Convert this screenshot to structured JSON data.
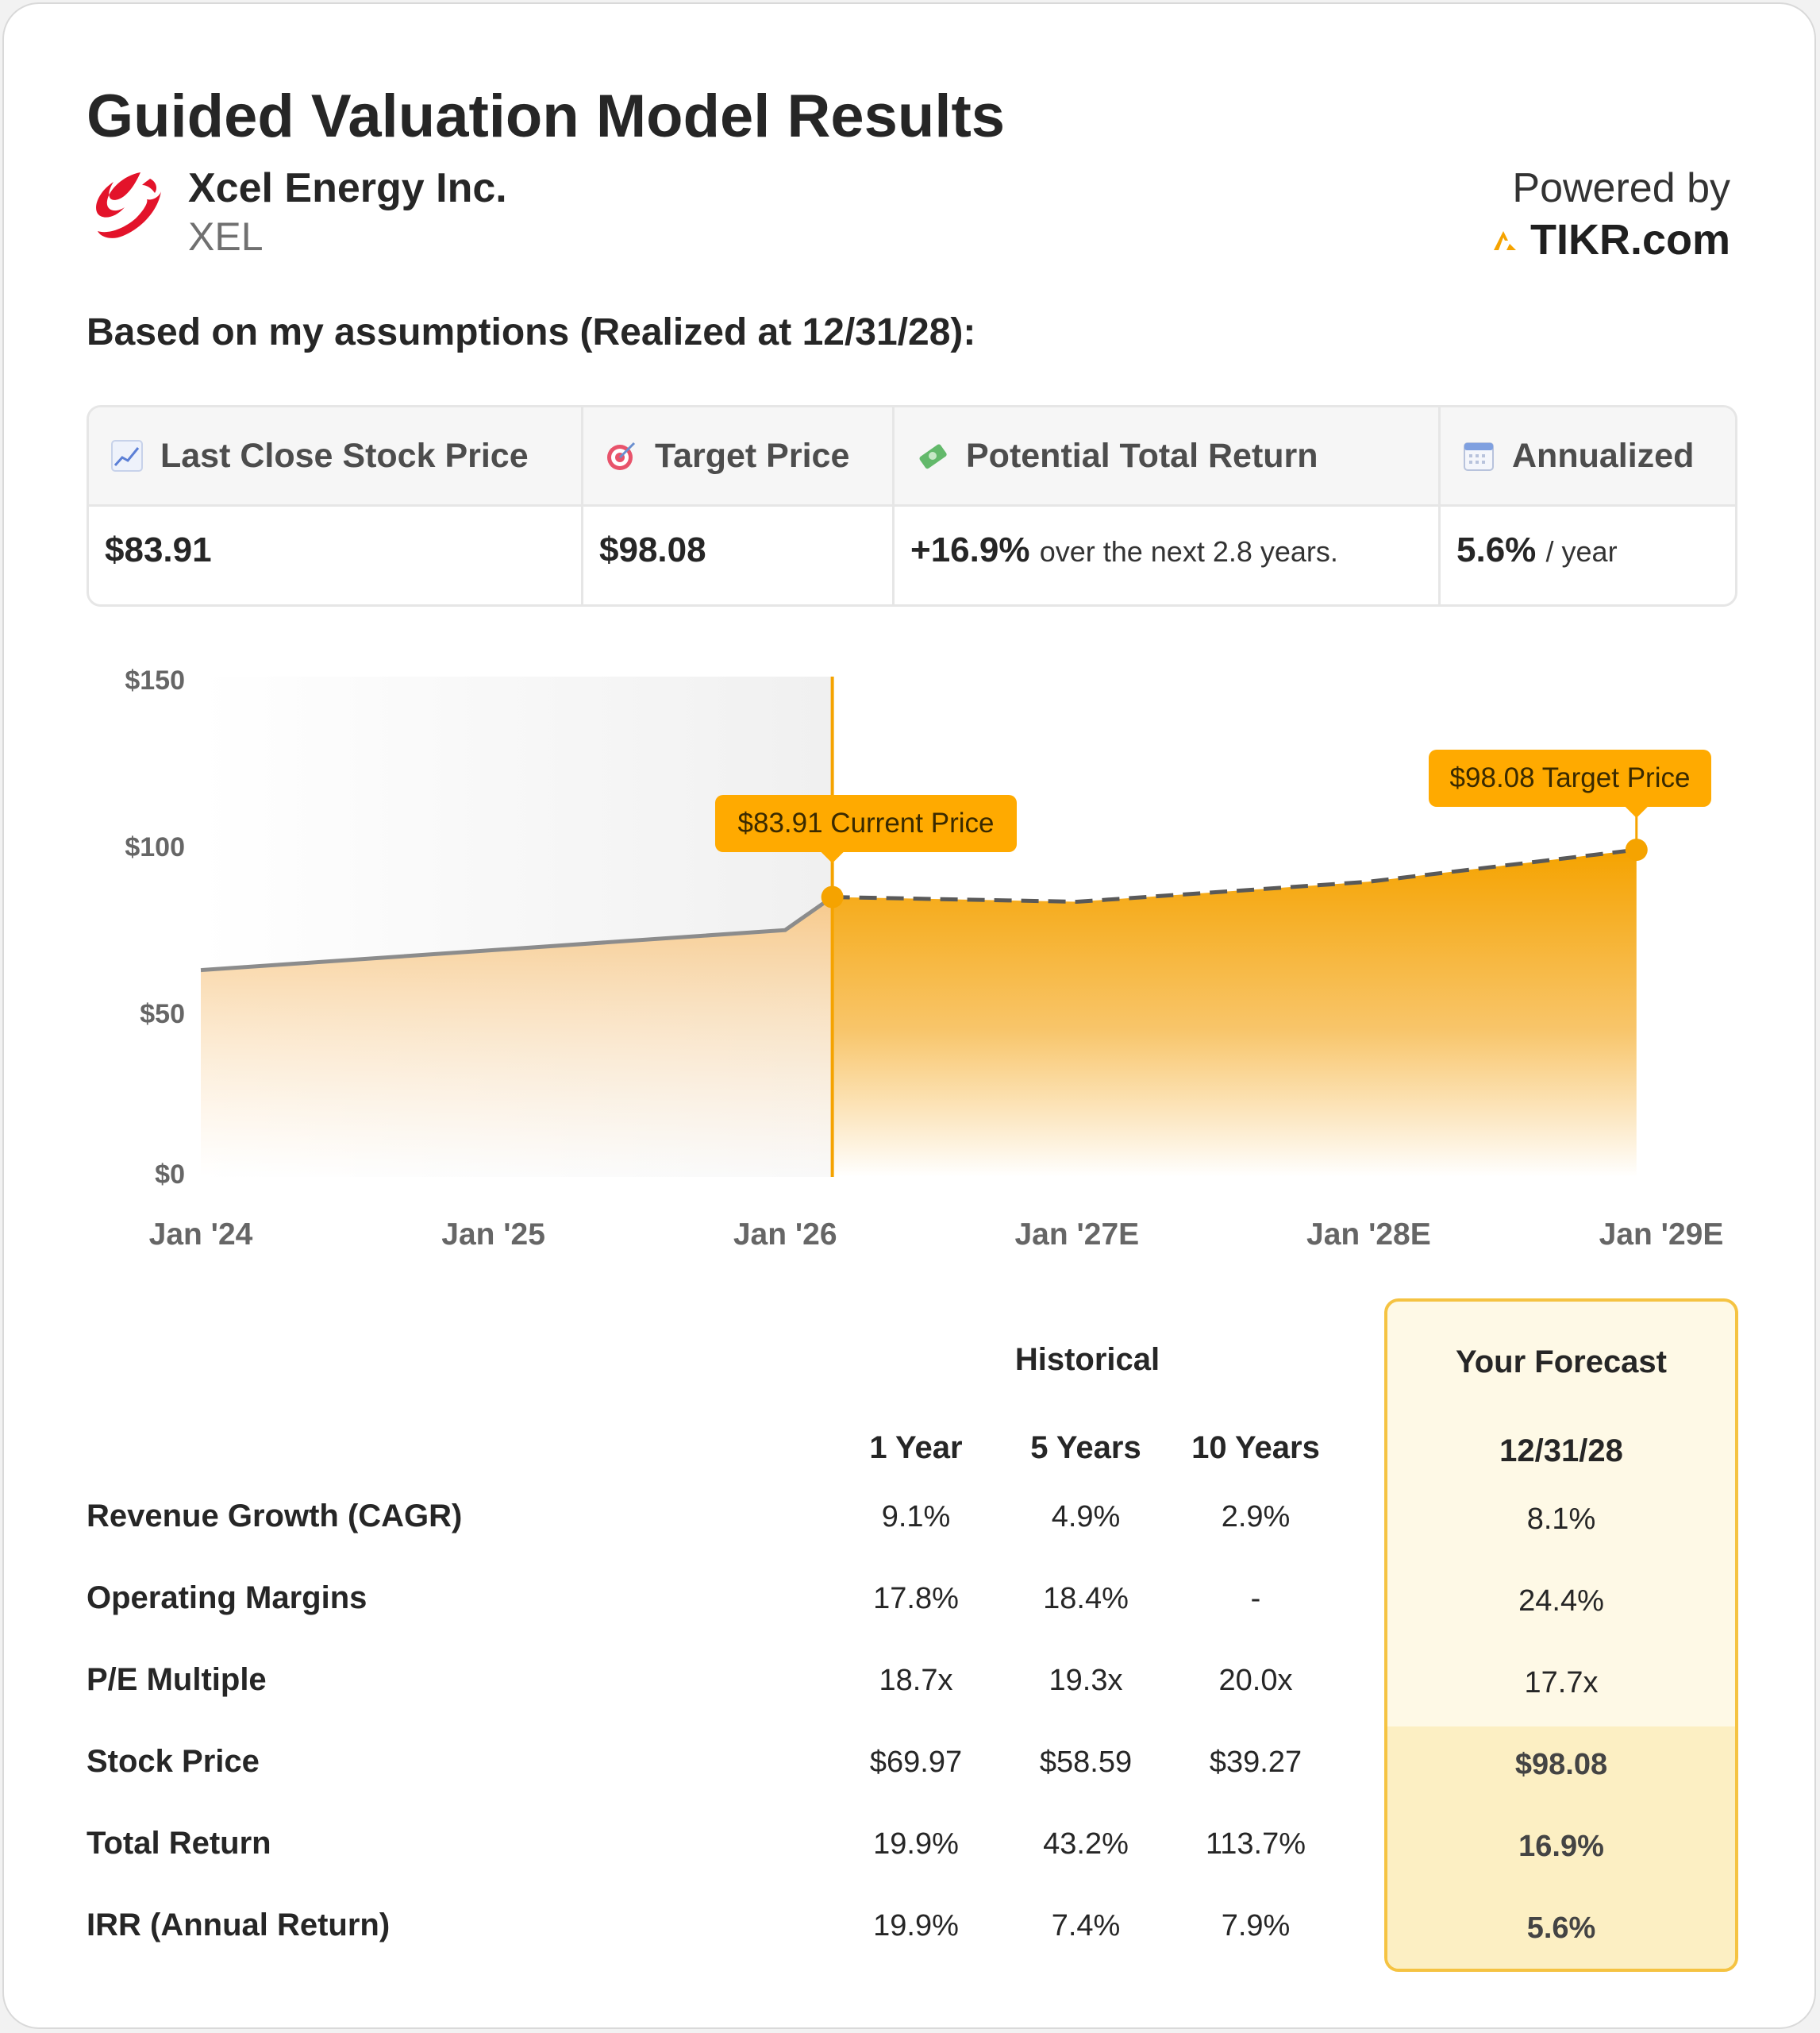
{
  "title": "Guided Valuation Model Results",
  "company": {
    "name": "Xcel Energy Inc.",
    "ticker": "XEL",
    "logo_icon": "xcel-logo"
  },
  "powered_by": {
    "label": "Powered by",
    "brand": "TIKR.com"
  },
  "assumptions_heading": "Based on my assumptions (Realized at 12/31/28):",
  "summary": {
    "columns": [
      {
        "icon": "chart-increasing-icon",
        "header": "Last Close Stock Price",
        "value": "$83.91",
        "suffix": ""
      },
      {
        "icon": "target-icon",
        "header": "Target Price",
        "value": "$98.08",
        "suffix": ""
      },
      {
        "icon": "money-icon",
        "header": "Potential Total Return",
        "value": "+16.9%",
        "suffix": "over the next 2.8 years."
      },
      {
        "icon": "calendar-icon",
        "header": "Annualized",
        "value": "5.6%",
        "suffix": "/ year"
      }
    ]
  },
  "chart_data": {
    "type": "area",
    "y_ticks": [
      "$150",
      "$100",
      "$50",
      "$0"
    ],
    "ylim": [
      0,
      150
    ],
    "x_ticks": [
      "Jan '24",
      "Jan '25",
      "Jan '26",
      "Jan '27E",
      "Jan '28E",
      "Jan '29E"
    ],
    "historical": [
      {
        "x": "2024-01",
        "y": 62
      },
      {
        "x": "2026-01",
        "y": 74
      },
      {
        "x": "2026-03",
        "y": 83.91
      }
    ],
    "forecast": [
      {
        "x": "2026-03",
        "y": 83.91
      },
      {
        "x": "2027-01",
        "y": 82.5
      },
      {
        "x": "2028-01",
        "y": 88.5
      },
      {
        "x": "2028-12",
        "y": 98.08
      }
    ],
    "annotations": {
      "current": "$83.91 Current Price",
      "target": "$98.08 Target Price"
    },
    "colors": {
      "accent": "#F7A600",
      "historical_line": "#8c8c8c",
      "label_bg": "#FFAA00"
    }
  },
  "table": {
    "historical_header": "Historical",
    "forecast_header": "Your Forecast",
    "columns": [
      "1 Year",
      "5 Years",
      "10 Years"
    ],
    "forecast_date": "12/31/28",
    "rows": [
      {
        "label": "Revenue Growth (CAGR)",
        "values": [
          "9.1%",
          "4.9%",
          "2.9%"
        ],
        "forecast": "8.1%"
      },
      {
        "label": "Operating Margins",
        "values": [
          "17.8%",
          "18.4%",
          "-"
        ],
        "forecast": "24.4%"
      },
      {
        "label": "P/E Multiple",
        "values": [
          "18.7x",
          "19.3x",
          "20.0x"
        ],
        "forecast": "17.7x"
      },
      {
        "label": "Stock Price",
        "values": [
          "$69.97",
          "$58.59",
          "$39.27"
        ],
        "forecast": "$98.08"
      },
      {
        "label": "Total Return",
        "values": [
          "19.9%",
          "43.2%",
          "113.7%"
        ],
        "forecast": "16.9%"
      },
      {
        "label": "IRR (Annual Return)",
        "values": [
          "19.9%",
          "7.4%",
          "7.9%"
        ],
        "forecast": "5.6%"
      }
    ]
  }
}
